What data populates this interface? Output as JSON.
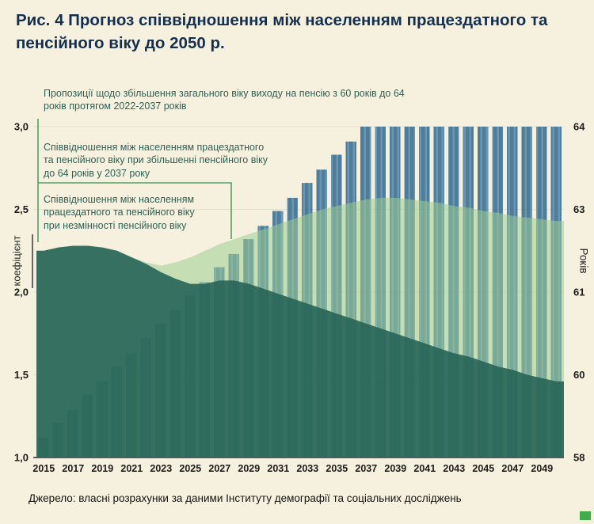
{
  "title": "Рис. 4 Прогноз співвідношення між населенням працездатного та пенсійного віку до 2050 р.",
  "source": "Джерело: власні розрахунки за даними Інституту демографії та соціальних досліджень",
  "annotations": {
    "proposal": "Пропозиції щодо збільшення загального віку виходу на пенсію  з 60 років до 64 років протягом 2022-2037 років",
    "increased": "Співвідношення між населенням працездатного та пенсійного віку при збільшенні пенсійного віку до 64 років у 2037 року",
    "unchanged": "Співвідношення між населенням працездатного та пенсійного віку при незмінності пенсійного віку"
  },
  "chart_data": {
    "type": "mixed-bar-area",
    "title": "Прогноз співвідношення між населенням працездатного та пенсійного віку до 2050 р.",
    "x": [
      2015,
      2016,
      2017,
      2018,
      2019,
      2020,
      2021,
      2022,
      2023,
      2024,
      2025,
      2026,
      2027,
      2028,
      2029,
      2030,
      2031,
      2032,
      2033,
      2034,
      2035,
      2036,
      2037,
      2038,
      2039,
      2040,
      2041,
      2042,
      2043,
      2044,
      2045,
      2046,
      2047,
      2048,
      2049,
      2050
    ],
    "series": [
      {
        "id": "pension_age",
        "type": "bar",
        "name": "Пропозиції щодо збільшення загального віку виходу на пенсію з 60 років до 64 років протягом 2022-2037 років",
        "values": [
          1.12,
          1.21,
          1.29,
          1.38,
          1.46,
          1.55,
          1.63,
          1.72,
          1.81,
          1.89,
          1.98,
          2.06,
          2.15,
          2.23,
          2.32,
          2.4,
          2.49,
          2.57,
          2.66,
          2.74,
          2.83,
          2.91,
          3.0,
          3.0,
          3.0,
          3.0,
          3.0,
          3.0,
          3.0,
          3.0,
          3.0,
          3.0,
          3.0,
          3.0,
          3.0,
          3.0
        ]
      },
      {
        "id": "increased",
        "type": "area",
        "name": "Співвідношення між населенням працездатного та пенсійного віку при збільшенні пенсійного віку до 64 років у 2037 року",
        "values": [
          2.25,
          2.27,
          2.28,
          2.28,
          2.27,
          2.25,
          2.21,
          2.18,
          2.16,
          2.18,
          2.21,
          2.25,
          2.29,
          2.32,
          2.35,
          2.38,
          2.41,
          2.44,
          2.47,
          2.5,
          2.52,
          2.54,
          2.56,
          2.57,
          2.57,
          2.56,
          2.55,
          2.54,
          2.52,
          2.51,
          2.49,
          2.48,
          2.46,
          2.45,
          2.44,
          2.43
        ]
      },
      {
        "id": "unchanged",
        "type": "area",
        "name": "Співвідношення між населенням працездатного та пенсійного віку при незмінності пенсійного віку",
        "values": [
          2.25,
          2.27,
          2.28,
          2.28,
          2.27,
          2.25,
          2.21,
          2.17,
          2.12,
          2.08,
          2.05,
          2.05,
          2.07,
          2.07,
          2.05,
          2.02,
          1.99,
          1.96,
          1.93,
          1.9,
          1.87,
          1.84,
          1.81,
          1.78,
          1.75,
          1.72,
          1.69,
          1.66,
          1.63,
          1.61,
          1.58,
          1.55,
          1.53,
          1.5,
          1.48,
          1.46
        ]
      }
    ],
    "left_axis": {
      "label": "коефіцієнт",
      "range": [
        1.0,
        3.0
      ],
      "ticks": [
        "3,0",
        "2,5",
        "2,0",
        "1,5",
        "1,0"
      ]
    },
    "right_axis": {
      "label": "Років",
      "ticks": [
        "64",
        "63",
        "61",
        "60",
        "58"
      ]
    },
    "x_ticks": [
      "2015",
      "2017",
      "2019",
      "2021",
      "2023",
      "2025",
      "2027",
      "2029",
      "2031",
      "2033",
      "2035",
      "2037",
      "2039",
      "2041",
      "2043",
      "2045",
      "2047",
      "2049"
    ],
    "grid": "faint-horizontal",
    "legend_position": "annotations-on-chart",
    "colors": {
      "background": "#f6f1de",
      "bar": "#30688f",
      "bar_stripe": "#4f86ab",
      "area_light": "#9ccd92",
      "area_dark": "#266456",
      "bracket": "#54a065",
      "title": "#14304f",
      "annotation_text": "#2d6156"
    }
  }
}
